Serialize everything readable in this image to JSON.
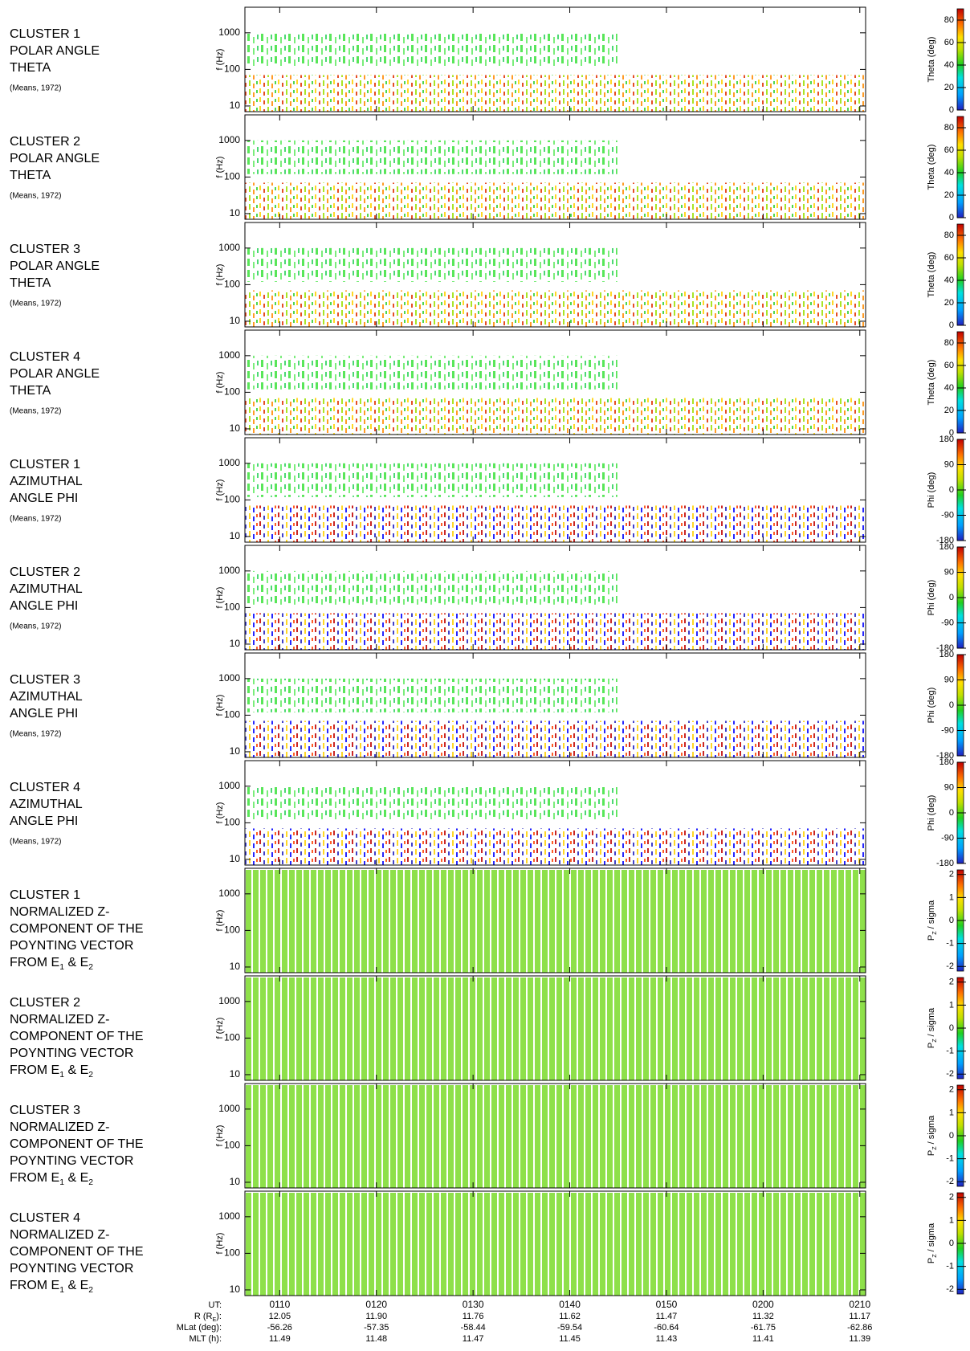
{
  "chart_data": [
    {
      "type": "spectrogram",
      "title": [
        "CLUSTER 1",
        "POLAR ANGLE",
        "THETA"
      ],
      "reference": "(Means, 1972)",
      "ylabel": "f (Hz)",
      "log_y": true,
      "ylim": [
        7,
        5000
      ],
      "yticks": [
        10,
        100,
        1000
      ],
      "colorbar": {
        "label": "Theta (deg)",
        "lim": [
          0,
          90
        ],
        "ticks": [
          0,
          20,
          40,
          60,
          80
        ]
      }
    },
    {
      "type": "spectrogram",
      "title": [
        "CLUSTER 2",
        "POLAR ANGLE",
        "THETA"
      ],
      "reference": "(Means, 1972)",
      "ylabel": "f (Hz)",
      "log_y": true,
      "ylim": [
        7,
        5000
      ],
      "yticks": [
        10,
        100,
        1000
      ],
      "colorbar": {
        "label": "Theta (deg)",
        "lim": [
          0,
          90
        ],
        "ticks": [
          0,
          20,
          40,
          60,
          80
        ]
      }
    },
    {
      "type": "spectrogram",
      "title": [
        "CLUSTER 3",
        "POLAR ANGLE",
        "THETA"
      ],
      "reference": "(Means, 1972)",
      "ylabel": "f (Hz)",
      "log_y": true,
      "ylim": [
        7,
        5000
      ],
      "yticks": [
        10,
        100,
        1000
      ],
      "colorbar": {
        "label": "Theta (deg)",
        "lim": [
          0,
          90
        ],
        "ticks": [
          0,
          20,
          40,
          60,
          80
        ]
      }
    },
    {
      "type": "spectrogram",
      "title": [
        "CLUSTER 4",
        "POLAR ANGLE",
        "THETA"
      ],
      "reference": "(Means, 1972)",
      "ylabel": "f (Hz)",
      "log_y": true,
      "ylim": [
        7,
        5000
      ],
      "yticks": [
        10,
        100,
        1000
      ],
      "colorbar": {
        "label": "Theta (deg)",
        "lim": [
          0,
          90
        ],
        "ticks": [
          0,
          20,
          40,
          60,
          80
        ]
      }
    },
    {
      "type": "spectrogram",
      "title": [
        "CLUSTER 1",
        "AZIMUTHAL",
        "ANGLE PHI"
      ],
      "reference": "(Means, 1972)",
      "ylabel": "f (Hz)",
      "log_y": true,
      "ylim": [
        7,
        5000
      ],
      "yticks": [
        10,
        100,
        1000
      ],
      "colorbar": {
        "label": "Phi (deg)",
        "lim": [
          -180,
          180
        ],
        "ticks": [
          -180,
          -90,
          0,
          90,
          180
        ]
      }
    },
    {
      "type": "spectrogram",
      "title": [
        "CLUSTER 2",
        "AZIMUTHAL",
        "ANGLE PHI"
      ],
      "reference": "(Means, 1972)",
      "ylabel": "f (Hz)",
      "log_y": true,
      "ylim": [
        7,
        5000
      ],
      "yticks": [
        10,
        100,
        1000
      ],
      "colorbar": {
        "label": "Phi (deg)",
        "lim": [
          -180,
          180
        ],
        "ticks": [
          -180,
          -90,
          0,
          90,
          180
        ]
      }
    },
    {
      "type": "spectrogram",
      "title": [
        "CLUSTER 3",
        "AZIMUTHAL",
        "ANGLE PHI"
      ],
      "reference": "(Means, 1972)",
      "ylabel": "f (Hz)",
      "log_y": true,
      "ylim": [
        7,
        5000
      ],
      "yticks": [
        10,
        100,
        1000
      ],
      "colorbar": {
        "label": "Phi (deg)",
        "lim": [
          -180,
          180
        ],
        "ticks": [
          -180,
          -90,
          0,
          90,
          180
        ]
      }
    },
    {
      "type": "spectrogram",
      "title": [
        "CLUSTER 4",
        "AZIMUTHAL",
        "ANGLE PHI"
      ],
      "reference": "(Means, 1972)",
      "ylabel": "f (Hz)",
      "log_y": true,
      "ylim": [
        7,
        5000
      ],
      "yticks": [
        10,
        100,
        1000
      ],
      "colorbar": {
        "label": "Phi (deg)",
        "lim": [
          -180,
          180
        ],
        "ticks": [
          -180,
          -90,
          0,
          90,
          180
        ]
      }
    },
    {
      "type": "spectrogram",
      "title": [
        "CLUSTER 1",
        "NORMALIZED Z-",
        "COMPONENT OF THE",
        "POYNTING VECTOR",
        [
          {
            "t": "FROM E"
          },
          {
            "sub": "1"
          },
          {
            "t": " & E"
          },
          {
            "sub": "2"
          }
        ]
      ],
      "ylabel": "f (Hz)",
      "log_y": true,
      "ylim": [
        7,
        5000
      ],
      "yticks": [
        10,
        100,
        1000
      ],
      "colorbar": {
        "label": [
          {
            "t": "P"
          },
          {
            "sub": "Z"
          },
          {
            "t": " / sigma"
          }
        ],
        "lim": [
          -2.2,
          2.2
        ],
        "ticks": [
          -2,
          -1,
          0,
          1,
          2
        ]
      }
    },
    {
      "type": "spectrogram",
      "title": [
        "CLUSTER 2",
        "NORMALIZED Z-",
        "COMPONENT OF THE",
        "POYNTING VECTOR",
        [
          {
            "t": "FROM E"
          },
          {
            "sub": "1"
          },
          {
            "t": " & E"
          },
          {
            "sub": "2"
          }
        ]
      ],
      "ylabel": "f (Hz)",
      "log_y": true,
      "ylim": [
        7,
        5000
      ],
      "yticks": [
        10,
        100,
        1000
      ],
      "colorbar": {
        "label": [
          {
            "t": "P"
          },
          {
            "sub": "Z"
          },
          {
            "t": " / sigma"
          }
        ],
        "lim": [
          -2.2,
          2.2
        ],
        "ticks": [
          -2,
          -1,
          0,
          1,
          2
        ]
      }
    },
    {
      "type": "spectrogram",
      "title": [
        "CLUSTER 3",
        "NORMALIZED Z-",
        "COMPONENT OF THE",
        "POYNTING VECTOR",
        [
          {
            "t": "FROM E"
          },
          {
            "sub": "1"
          },
          {
            "t": " & E"
          },
          {
            "sub": "2"
          }
        ]
      ],
      "ylabel": "f (Hz)",
      "log_y": true,
      "ylim": [
        7,
        5000
      ],
      "yticks": [
        10,
        100,
        1000
      ],
      "colorbar": {
        "label": [
          {
            "t": "P"
          },
          {
            "sub": "Z"
          },
          {
            "t": " / sigma"
          }
        ],
        "lim": [
          -2.2,
          2.2
        ],
        "ticks": [
          -2,
          -1,
          0,
          1,
          2
        ]
      }
    },
    {
      "type": "spectrogram",
      "title": [
        "CLUSTER 4",
        "NORMALIZED Z-",
        "COMPONENT OF THE",
        "POYNTING VECTOR",
        [
          {
            "t": "FROM E"
          },
          {
            "sub": "1"
          },
          {
            "t": " & E"
          },
          {
            "sub": "2"
          }
        ]
      ],
      "ylabel": "f (Hz)",
      "log_y": true,
      "ylim": [
        7,
        5000
      ],
      "yticks": [
        10,
        100,
        1000
      ],
      "colorbar": {
        "label": [
          {
            "t": "P"
          },
          {
            "sub": "Z"
          },
          {
            "t": " / sigma"
          }
        ],
        "lim": [
          -2.2,
          2.2
        ],
        "ticks": [
          -2,
          -1,
          0,
          1,
          2
        ]
      }
    }
  ],
  "x_axis": {
    "label": "UT:",
    "xlim": [
      66.4,
      130.6
    ],
    "xticks": [
      {
        "value": 70,
        "label": "0110"
      },
      {
        "value": 80,
        "label": "0120"
      },
      {
        "value": 90,
        "label": "0130"
      },
      {
        "value": 100,
        "label": "0140"
      },
      {
        "value": 110,
        "label": "0150"
      },
      {
        "value": 120,
        "label": "0200"
      },
      {
        "value": 130,
        "label": "0210"
      }
    ],
    "ephemeris": [
      {
        "label": [
          {
            "t": "R (R"
          },
          {
            "sub": "E"
          },
          {
            "t": "):"
          }
        ],
        "values": [
          "12.05",
          "11.90",
          "11.76",
          "11.62",
          "11.47",
          "11.32",
          "11.17"
        ]
      },
      {
        "label": "MLat (deg):",
        "values": [
          "-56.26",
          "-57.35",
          "-58.44",
          "-59.54",
          "-60.64",
          "-61.75",
          "-62.86"
        ]
      },
      {
        "label": "MLT (h):",
        "values": [
          "11.49",
          "11.48",
          "11.47",
          "11.45",
          "11.43",
          "11.41",
          "11.39"
        ]
      }
    ]
  }
}
